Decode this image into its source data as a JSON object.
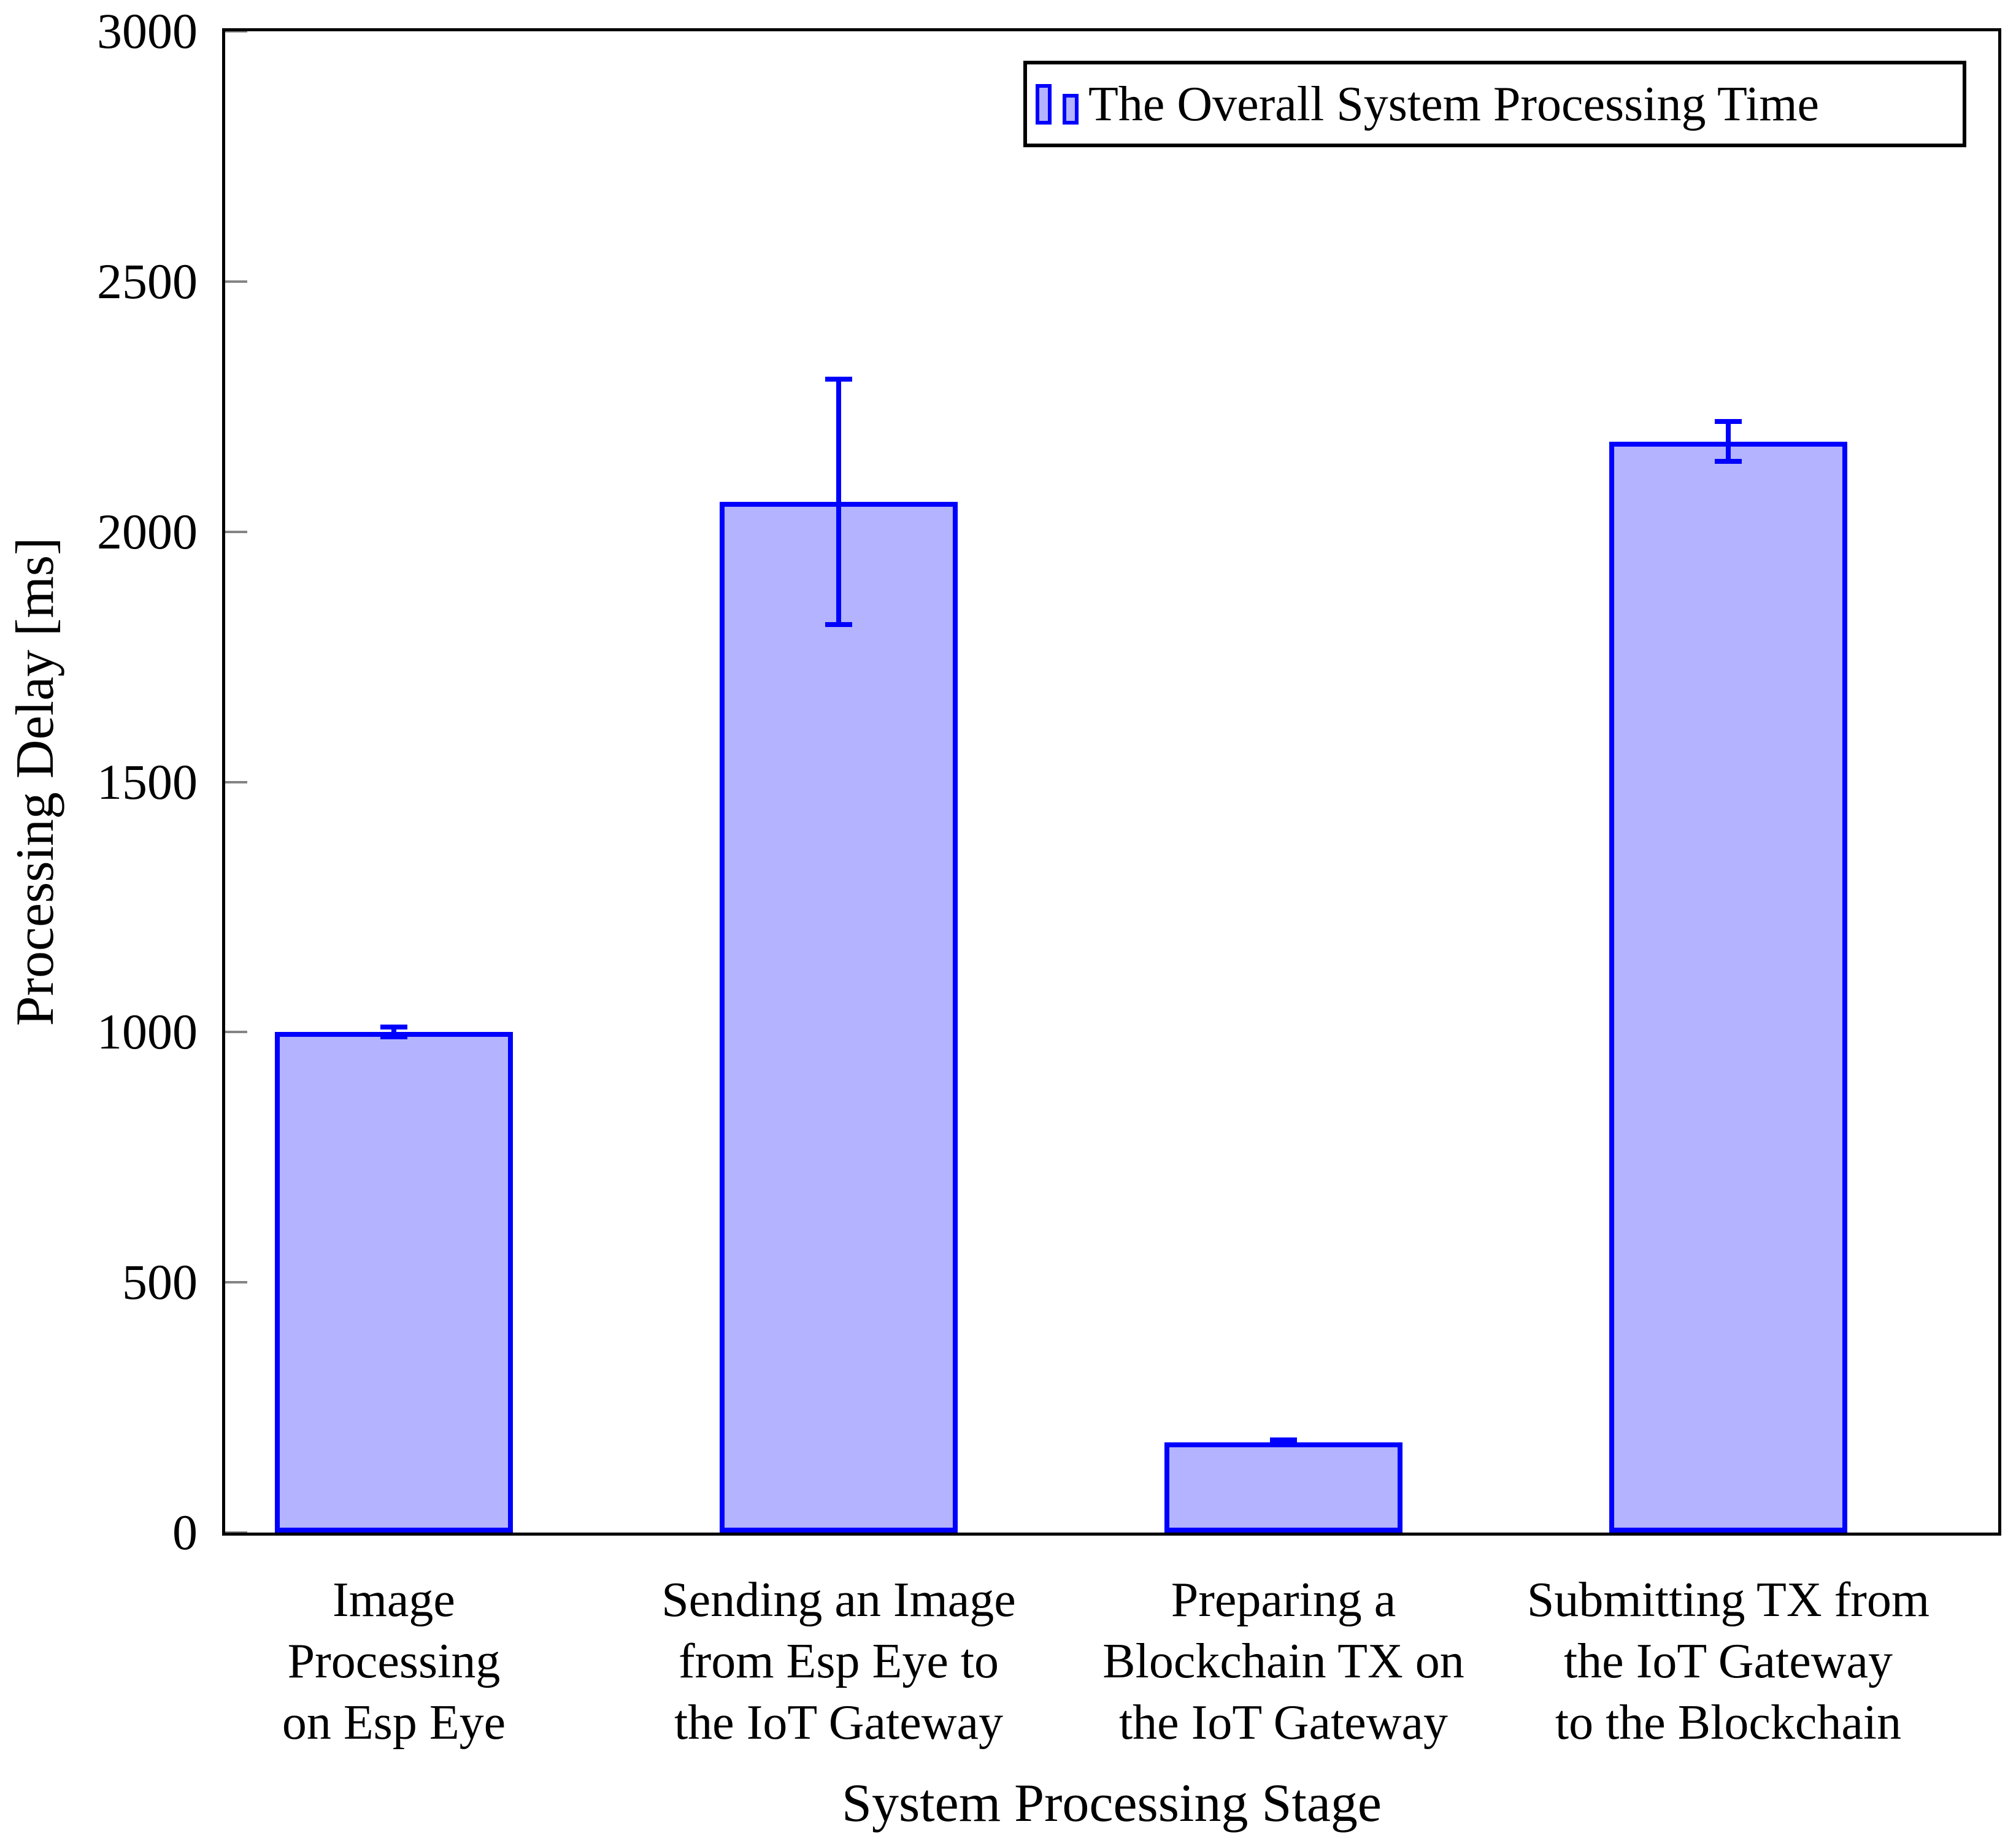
{
  "figure": {
    "ylabel": "Processing Delay [ms]",
    "xlabel": "System Processing Stage",
    "legend_label": "The Overall System Processing Time"
  },
  "chart_data": {
    "type": "bar",
    "title": "",
    "xlabel": "System Processing Stage",
    "ylabel": "Processing Delay [ms]",
    "categories": [
      "Image Processing on Esp Eye",
      "Sending an Image from Esp Eye to the IoT Gateway",
      "Preparing a Blockchain TX on the IoT Gateway",
      "Submitting TX from the IoT Gateway to the Blockchain"
    ],
    "categories_wrapped": [
      [
        "Image",
        "Processing",
        "on Esp Eye"
      ],
      [
        "Sending an Image",
        "from Esp Eye to",
        "the IoT Gateway"
      ],
      [
        "Preparing a",
        "Blockchain TX on",
        "the IoT Gateway"
      ],
      [
        "Submitting TX from",
        "the IoT Gateway",
        "to the Blockchain"
      ]
    ],
    "series": [
      {
        "name": "The Overall System Processing Time",
        "values": [
          1000,
          2060,
          180,
          2180
        ],
        "errors": [
          10,
          245,
          5,
          40
        ]
      }
    ],
    "ylim": [
      0,
      3000
    ],
    "yticks": [
      0,
      500,
      1000,
      1500,
      2000,
      2500,
      3000
    ],
    "grid": false,
    "legend_position": "top-right",
    "colors": {
      "bar_fill": "#B3B3FF",
      "bar_stroke": "#0000FF",
      "error_bar": "#0000FF",
      "axis": "#000000",
      "tick": "#848484",
      "text": "#000000"
    }
  }
}
